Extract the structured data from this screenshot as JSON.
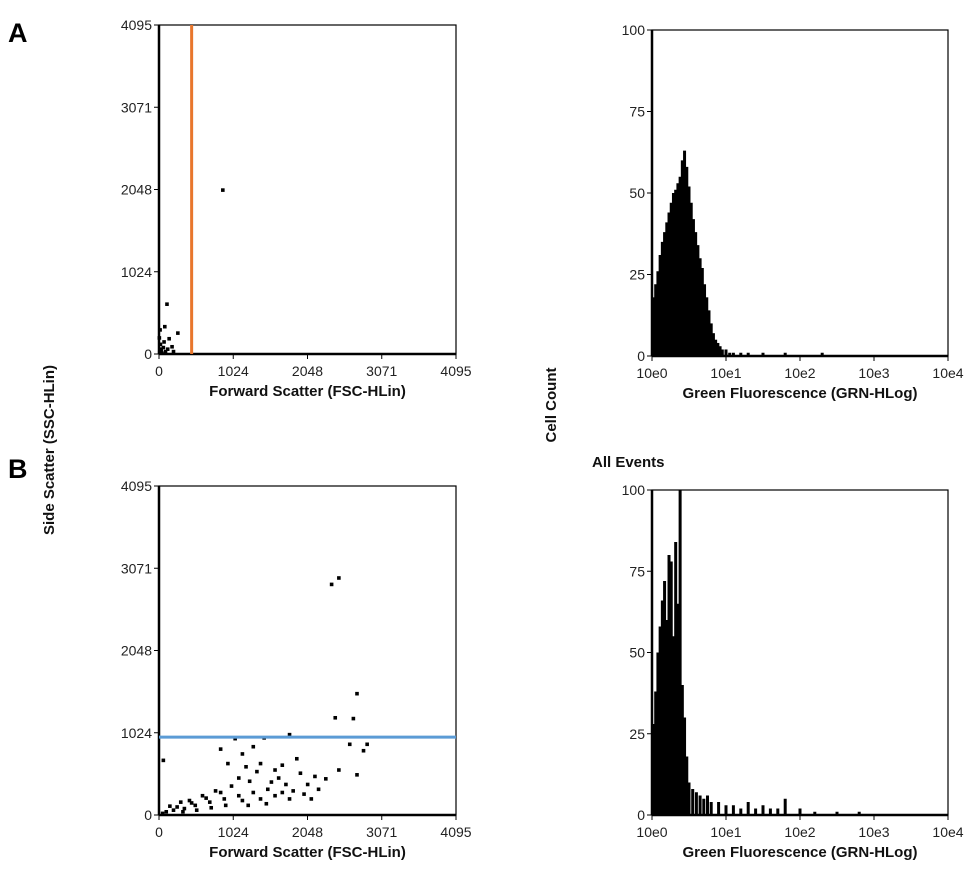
{
  "figure": {
    "panel_labels": [
      "A",
      "B"
    ],
    "shared_ylabel_scatter": "Side Scatter (SSC-HLin)",
    "shared_ylabel_hist": "Cell Count",
    "gate_colors": {
      "vertical_gate": "#e8762c",
      "horizontal_gate": "#5b9bd5"
    }
  },
  "chart_data": [
    {
      "id": "A-scatter",
      "type": "scatter",
      "title": "",
      "xlabel": "Forward Scatter (FSC-HLin)",
      "ylabel": "Side Scatter (SSC-HLin)",
      "xlim": [
        0,
        4095
      ],
      "ylim": [
        0,
        4095
      ],
      "xticks": [
        "0",
        "1024",
        "2048",
        "3071",
        "4095"
      ],
      "yticks": [
        "0",
        "1024",
        "2048",
        "3071",
        "4095"
      ],
      "gate": {
        "orientation": "vertical",
        "value": 450,
        "color": "#e8762c"
      },
      "points": [
        [
          880,
          2040
        ],
        [
          110,
          620
        ],
        [
          80,
          340
        ],
        [
          260,
          260
        ],
        [
          140,
          190
        ],
        [
          20,
          120
        ],
        [
          60,
          80
        ],
        [
          30,
          40
        ],
        [
          120,
          60
        ],
        [
          10,
          20
        ],
        [
          40,
          10
        ],
        [
          180,
          90
        ],
        [
          70,
          150
        ],
        [
          5,
          200
        ],
        [
          15,
          300
        ],
        [
          25,
          60
        ],
        [
          90,
          30
        ],
        [
          200,
          30
        ]
      ]
    },
    {
      "id": "A-hist",
      "type": "bar",
      "title": "",
      "xlabel": "Green Fluorescence (GRN-HLog)",
      "ylabel": "Cell Count",
      "xscale": "log",
      "xlim": [
        1,
        10000
      ],
      "ylim": [
        0,
        100
      ],
      "xticks": [
        "10e0",
        "10e1",
        "10e2",
        "10e3",
        "10e4"
      ],
      "yticks": [
        "0",
        "25",
        "50",
        "75",
        "100"
      ],
      "bins_log10": [
        0.02,
        0.05,
        0.08,
        0.11,
        0.14,
        0.17,
        0.2,
        0.23,
        0.26,
        0.29,
        0.32,
        0.35,
        0.38,
        0.41,
        0.44,
        0.47,
        0.5,
        0.53,
        0.56,
        0.59,
        0.62,
        0.65,
        0.68,
        0.71,
        0.74,
        0.77,
        0.8,
        0.83,
        0.86,
        0.89,
        0.92,
        0.95,
        1.0,
        1.05,
        1.1,
        1.2,
        1.3,
        1.4,
        1.5,
        1.6,
        1.8,
        2.0,
        2.3
      ],
      "counts": [
        18,
        22,
        26,
        31,
        35,
        38,
        41,
        44,
        47,
        50,
        51,
        53,
        55,
        60,
        63,
        58,
        52,
        47,
        42,
        38,
        34,
        30,
        27,
        22,
        18,
        14,
        10,
        7,
        5,
        4,
        3,
        2,
        2,
        1,
        1,
        1,
        1,
        0,
        1,
        0,
        1,
        0,
        1
      ]
    },
    {
      "id": "B-scatter",
      "type": "scatter",
      "title": "",
      "xlabel": "Forward Scatter (FSC-HLin)",
      "ylabel": "Side Scatter (SSC-HLin)",
      "xlim": [
        0,
        4095
      ],
      "ylim": [
        0,
        4095
      ],
      "xticks": [
        "0",
        "1024",
        "2048",
        "3071",
        "4095"
      ],
      "yticks": [
        "0",
        "1024",
        "2048",
        "3071",
        "4095"
      ],
      "gate": {
        "orientation": "horizontal",
        "value": 970,
        "color": "#5b9bd5"
      },
      "points": [
        [
          2380,
          2870
        ],
        [
          2480,
          2950
        ],
        [
          2730,
          1510
        ],
        [
          2430,
          1210
        ],
        [
          2680,
          1200
        ],
        [
          2630,
          880
        ],
        [
          2870,
          880
        ],
        [
          2480,
          560
        ],
        [
          2730,
          500
        ],
        [
          2820,
          800
        ],
        [
          1050,
          950
        ],
        [
          1300,
          850
        ],
        [
          1450,
          960
        ],
        [
          1800,
          1000
        ],
        [
          1150,
          760
        ],
        [
          850,
          820
        ],
        [
          950,
          640
        ],
        [
          1200,
          600
        ],
        [
          1400,
          640
        ],
        [
          1600,
          560
        ],
        [
          1900,
          700
        ],
        [
          2150,
          480
        ],
        [
          2300,
          450
        ],
        [
          2050,
          380
        ],
        [
          1750,
          380
        ],
        [
          1500,
          320
        ],
        [
          1300,
          280
        ],
        [
          1100,
          240
        ],
        [
          900,
          200
        ],
        [
          700,
          160
        ],
        [
          500,
          120
        ],
        [
          350,
          80
        ],
        [
          200,
          60
        ],
        [
          100,
          40
        ],
        [
          50,
          20
        ],
        [
          1000,
          360
        ],
        [
          1250,
          420
        ],
        [
          1650,
          460
        ],
        [
          780,
          300
        ],
        [
          600,
          240
        ],
        [
          420,
          180
        ],
        [
          1850,
          300
        ],
        [
          2000,
          260
        ],
        [
          2200,
          320
        ],
        [
          1950,
          520
        ],
        [
          1700,
          620
        ],
        [
          300,
          160
        ],
        [
          150,
          110
        ],
        [
          60,
          680
        ],
        [
          1100,
          460
        ],
        [
          1350,
          540
        ],
        [
          1550,
          410
        ],
        [
          1700,
          280
        ],
        [
          850,
          280
        ],
        [
          650,
          210
        ],
        [
          450,
          150
        ],
        [
          250,
          100
        ],
        [
          1150,
          180
        ],
        [
          1400,
          200
        ],
        [
          1600,
          240
        ],
        [
          1800,
          200
        ],
        [
          2100,
          200
        ],
        [
          920,
          120
        ],
        [
          720,
          90
        ],
        [
          520,
          60
        ],
        [
          330,
          40
        ],
        [
          1230,
          120
        ],
        [
          1480,
          140
        ]
      ]
    },
    {
      "id": "B-hist",
      "type": "bar",
      "title": "All Events",
      "xlabel": "Green Fluorescence (GRN-HLog)",
      "ylabel": "Cell Count",
      "xscale": "log",
      "xlim": [
        1,
        10000
      ],
      "ylim": [
        0,
        100
      ],
      "xticks": [
        "10e0",
        "10e1",
        "10e2",
        "10e3",
        "10e4"
      ],
      "yticks": [
        "0",
        "25",
        "50",
        "75",
        "100"
      ],
      "bins_log10": [
        0.02,
        0.05,
        0.08,
        0.11,
        0.14,
        0.17,
        0.2,
        0.23,
        0.26,
        0.29,
        0.32,
        0.35,
        0.38,
        0.41,
        0.44,
        0.47,
        0.5,
        0.55,
        0.6,
        0.65,
        0.7,
        0.75,
        0.8,
        0.9,
        1.0,
        1.1,
        1.2,
        1.3,
        1.4,
        1.5,
        1.6,
        1.7,
        1.8,
        2.0,
        2.2,
        2.5,
        2.8
      ],
      "counts": [
        28,
        38,
        50,
        58,
        66,
        72,
        60,
        80,
        78,
        55,
        84,
        65,
        100,
        40,
        30,
        18,
        10,
        8,
        7,
        6,
        5,
        6,
        4,
        4,
        3,
        3,
        2,
        4,
        2,
        3,
        2,
        2,
        5,
        2,
        1,
        1,
        1
      ]
    }
  ]
}
